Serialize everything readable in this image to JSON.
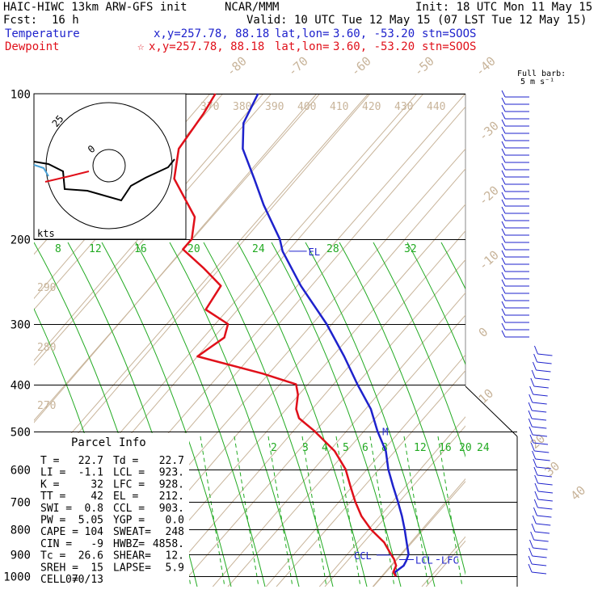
{
  "header": {
    "model": "HAIC-HIWC 13km ARW-GFS init",
    "org": "NCAR/MMM",
    "init": "Init: 18 UTC Mon 11 May 15",
    "fcst_label": "Fcst:",
    "fcst_value": "16 h",
    "valid": "Valid: 10 UTC Tue 12 May 15 (07 LST Tue 12 May 15)",
    "temp_label": "Temperature",
    "temp_xy": "x,y=257.78, 88.18",
    "temp_latlon_label": "lat,lon=",
    "temp_latlon": "3.60, -53.20",
    "temp_stn": "stn=SOOS",
    "dew_label": "Dewpoint",
    "dew_marker": "☆",
    "dew_xy": "x,y=257.78, 88.18",
    "dew_latlon_label": "lat,lon=",
    "dew_latlon": "3.60, -53.20",
    "dew_stn": "stn=SOOS"
  },
  "barb_legend": {
    "line1": "Full barb:",
    "line2": "5 m s⁻¹"
  },
  "parcel": {
    "title": "Parcel Info",
    "rows": [
      [
        "T   =",
        "22.7",
        "Td =",
        "22.7"
      ],
      [
        "LI  =",
        "-1.1",
        "LCL =",
        "923."
      ],
      [
        "K   =",
        "32",
        "LFC =",
        "928."
      ],
      [
        "TT  =",
        "42",
        "EL  =",
        "212."
      ],
      [
        "SWI =",
        "0.8",
        "CCL =",
        "903."
      ],
      [
        "PW  =",
        "5.05",
        "YGP =",
        "0.0"
      ],
      [
        "CAPE =",
        "104",
        "SWEAT=",
        "248"
      ],
      [
        "CIN  =",
        "-9",
        "HWBZ=",
        "4858."
      ],
      [
        "Tc  =",
        "26.6",
        "SHEAR=",
        "12."
      ],
      [
        "SREH =",
        "15",
        "LAPSE=",
        "5.9"
      ],
      [
        "CELL =",
        "070/13",
        "",
        ""
      ]
    ]
  },
  "hodograph": {
    "units": "kts",
    "ring_label": "25",
    "inner_label": "0"
  },
  "labels": {
    "el": "EL",
    "m": "M",
    "ccl": "CCL",
    "lcl": "LCL",
    "lfc": "LFC"
  },
  "colors": {
    "temperature": "#1e22cc",
    "dewpoint": "#e0101a",
    "mixing_ratio": "#22aa22",
    "dry_adiabat": "#c8b49a",
    "isotherm": "#c8b49a",
    "grid": "#000000"
  },
  "chart_data": {
    "type": "line",
    "title": "",
    "y_axis": {
      "scale": "log",
      "label": "",
      "ticks": [
        100,
        200,
        300,
        400,
        500,
        600,
        700,
        800,
        900,
        1000
      ]
    },
    "series": [
      {
        "name": "Temperature",
        "color": "#1e22cc",
        "points": [
          {
            "p": 1000,
            "t": 22.7
          },
          {
            "p": 980,
            "t": 21.8
          },
          {
            "p": 950,
            "t": 22.4
          },
          {
            "p": 928,
            "t": 22.1
          },
          {
            "p": 900,
            "t": 21.5
          },
          {
            "p": 850,
            "t": 19.2
          },
          {
            "p": 800,
            "t": 16.8
          },
          {
            "p": 750,
            "t": 14.1
          },
          {
            "p": 700,
            "t": 11.0
          },
          {
            "p": 650,
            "t": 7.6
          },
          {
            "p": 600,
            "t": 4.0
          },
          {
            "p": 550,
            "t": 0.6
          },
          {
            "p": 500,
            "t": -4.2
          },
          {
            "p": 450,
            "t": -9.0
          },
          {
            "p": 400,
            "t": -15.5
          },
          {
            "p": 350,
            "t": -22.5
          },
          {
            "p": 300,
            "t": -31.0
          },
          {
            "p": 250,
            "t": -42.0
          },
          {
            "p": 212,
            "t": -51.0
          },
          {
            "p": 200,
            "t": -53.5
          },
          {
            "p": 170,
            "t": -62.0
          },
          {
            "p": 150,
            "t": -68.0
          },
          {
            "p": 130,
            "t": -75.0
          },
          {
            "p": 115,
            "t": -79.0
          },
          {
            "p": 100,
            "t": -81.0
          }
        ]
      },
      {
        "name": "Dewpoint",
        "color": "#e0101a",
        "points": [
          {
            "p": 1000,
            "t": 22.7
          },
          {
            "p": 980,
            "t": 21.5
          },
          {
            "p": 950,
            "t": 21.0
          },
          {
            "p": 920,
            "t": 19.5
          },
          {
            "p": 900,
            "t": 18.2
          },
          {
            "p": 850,
            "t": 15.0
          },
          {
            "p": 800,
            "t": 10.5
          },
          {
            "p": 750,
            "t": 6.5
          },
          {
            "p": 700,
            "t": 3.0
          },
          {
            "p": 650,
            "t": -0.4
          },
          {
            "p": 600,
            "t": -4.0
          },
          {
            "p": 550,
            "t": -9.0
          },
          {
            "p": 500,
            "t": -16.0
          },
          {
            "p": 470,
            "t": -21.0
          },
          {
            "p": 450,
            "t": -23.0
          },
          {
            "p": 420,
            "t": -25.0
          },
          {
            "p": 400,
            "t": -27.0
          },
          {
            "p": 380,
            "t": -35.0
          },
          {
            "p": 350,
            "t": -50.0
          },
          {
            "p": 320,
            "t": -48.0
          },
          {
            "p": 300,
            "t": -49.5
          },
          {
            "p": 280,
            "t": -56.0
          },
          {
            "p": 250,
            "t": -57.0
          },
          {
            "p": 230,
            "t": -63.0
          },
          {
            "p": 210,
            "t": -70.0
          },
          {
            "p": 200,
            "t": -70.0
          },
          {
            "p": 180,
            "t": -73.0
          },
          {
            "p": 150,
            "t": -83.0
          },
          {
            "p": 130,
            "t": -87.0
          },
          {
            "p": 110,
            "t": -88.0
          },
          {
            "p": 100,
            "t": -89.0
          }
        ]
      }
    ],
    "isotherm_labels": [
      "-80",
      "-70",
      "-60",
      "-50",
      "-40",
      "-30",
      "-20",
      "-10",
      "0",
      "10",
      "20",
      "30",
      "40"
    ],
    "theta_labels": [
      "370",
      "380",
      "390",
      "400",
      "410",
      "420",
      "430",
      "440"
    ],
    "theta_left_labels": [
      "290",
      "280",
      "270"
    ],
    "mixing_ratio_labels_top": [
      "8",
      "12",
      "16",
      "20",
      "24",
      "28",
      "32"
    ],
    "mixing_ratio_labels_bottom": [
      "2",
      "3",
      "4",
      "5",
      "6",
      "8",
      "12",
      "16",
      "20",
      "24"
    ],
    "wind_barbs_note": "barbs plotted at right"
  }
}
